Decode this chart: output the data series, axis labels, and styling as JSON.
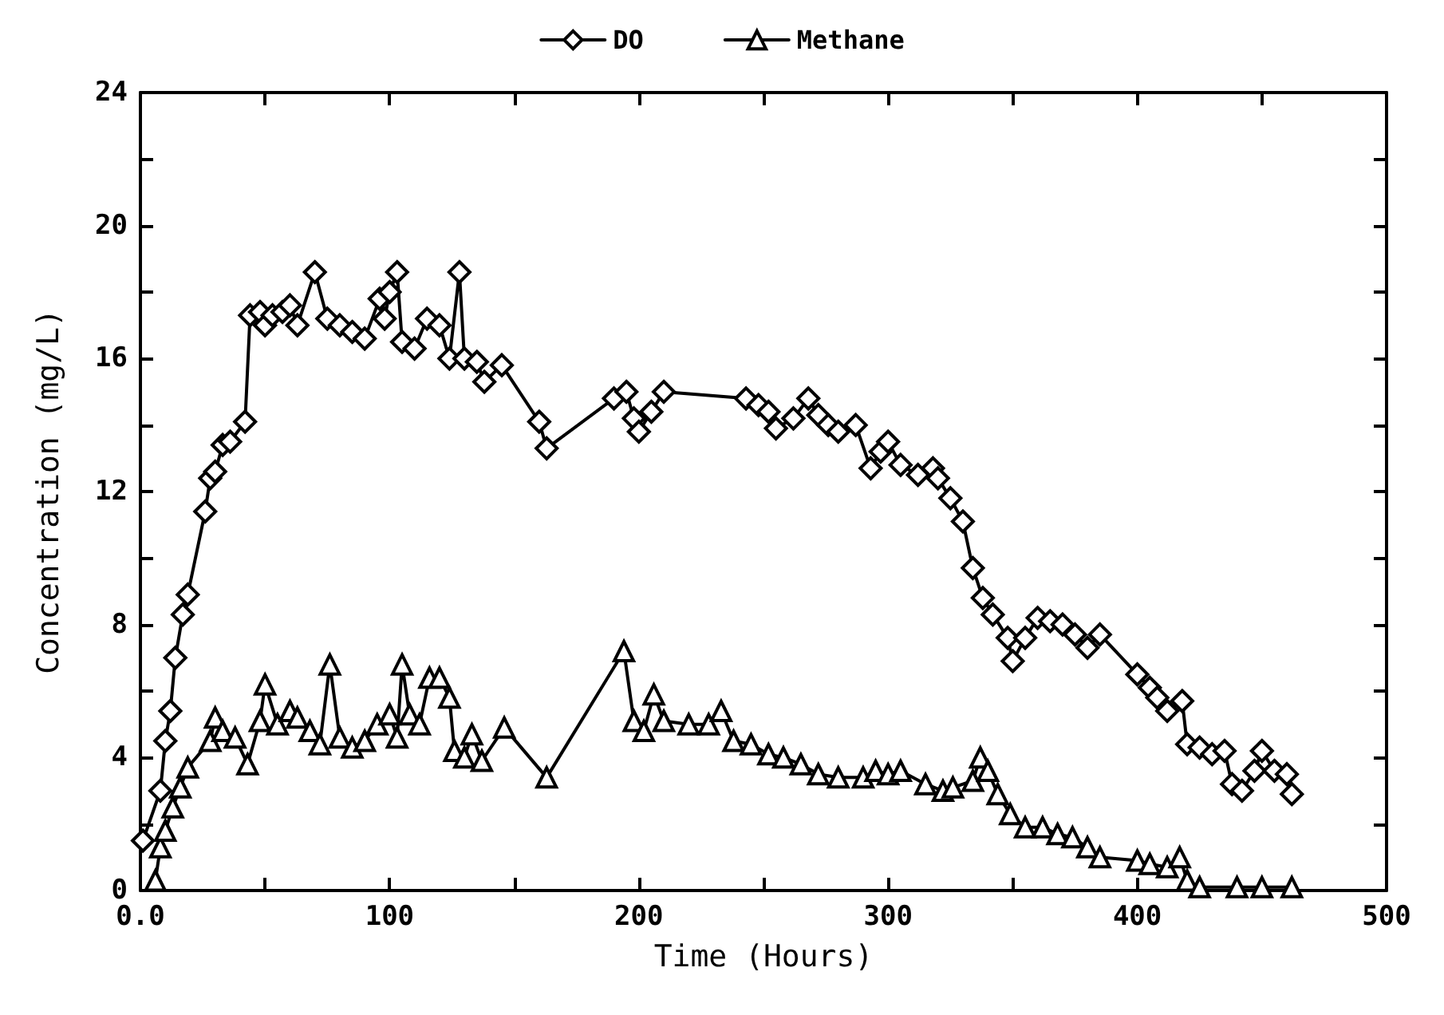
{
  "chart_data": {
    "type": "line",
    "xlabel": "Time (Hours)",
    "ylabel": "Concentration (mg/L)",
    "xlim": [
      0,
      500
    ],
    "ylim": [
      0,
      24
    ],
    "xticks": [
      {
        "value": 0,
        "label": "0.0"
      },
      {
        "value": 50,
        "label": null
      },
      100,
      {
        "value": 150,
        "label": null
      },
      200,
      {
        "value": 250,
        "label": null
      },
      300,
      {
        "value": 350,
        "label": null
      },
      400,
      {
        "value": 450,
        "label": null
      },
      500
    ],
    "yticks": [
      0,
      {
        "value": 2,
        "label": null
      },
      4,
      {
        "value": 6,
        "label": null
      },
      8,
      {
        "value": 10,
        "label": null
      },
      12,
      {
        "value": 14,
        "label": null
      },
      16,
      {
        "value": 18,
        "label": null
      },
      20,
      {
        "value": 22,
        "label": null
      },
      24
    ],
    "grid": false,
    "legend": "top",
    "line_style": "solid",
    "series": [
      {
        "name": "DO",
        "color": "#000000",
        "marker": "diamond",
        "x": [
          1,
          8,
          10,
          12,
          14,
          17,
          19,
          26,
          28,
          30,
          33,
          36,
          42,
          44,
          48,
          50,
          53,
          57,
          60,
          63,
          70,
          75,
          80,
          85,
          90,
          96,
          98,
          100,
          103,
          105,
          110,
          115,
          120,
          124,
          128,
          130,
          135,
          138,
          145,
          160,
          163,
          190,
          195,
          198,
          200,
          205,
          210,
          243,
          248,
          252,
          255,
          262,
          268,
          272,
          276,
          280,
          287,
          293,
          297,
          300,
          305,
          312,
          318,
          320,
          325,
          330,
          334,
          338,
          342,
          348,
          350,
          355,
          360,
          365,
          370,
          375,
          380,
          385,
          400,
          405,
          408,
          412,
          418,
          420,
          425,
          430,
          435,
          438,
          442,
          447,
          450,
          455,
          460,
          462
        ],
        "values": [
          1.5,
          3,
          4.5,
          5.4,
          7,
          8.3,
          8.9,
          11.4,
          12.4,
          12.6,
          13.4,
          13.5,
          14.1,
          17.3,
          17.4,
          17,
          17.3,
          17.4,
          17.6,
          17,
          18.6,
          17.2,
          17,
          16.8,
          16.6,
          17.8,
          17.2,
          18,
          18.6,
          16.5,
          16.3,
          17.2,
          17,
          16,
          18.6,
          16,
          15.9,
          15.3,
          15.8,
          14.1,
          13.3,
          14.8,
          15,
          14.2,
          13.8,
          14.4,
          15,
          14.8,
          14.6,
          14.4,
          13.9,
          14.2,
          14.8,
          14.3,
          14,
          13.8,
          14,
          12.7,
          13.2,
          13.5,
          12.8,
          12.5,
          12.7,
          12.4,
          11.8,
          11.1,
          9.7,
          8.8,
          8.3,
          7.6,
          6.9,
          7.6,
          8.2,
          8.1,
          8,
          7.7,
          7.3,
          7.7,
          6.5,
          6.1,
          5.8,
          5.4,
          5.7,
          4.4,
          4.3,
          4.1,
          4.2,
          3.2,
          3,
          3.6,
          4.2,
          3.6,
          3.5,
          2.9
        ]
      },
      {
        "name": "Methane",
        "color": "#000000",
        "marker": "triangle",
        "x": [
          6,
          8,
          10,
          13,
          16,
          19,
          28,
          30,
          33,
          38,
          43,
          48,
          50,
          55,
          60,
          63,
          68,
          72,
          76,
          80,
          85,
          90,
          95,
          100,
          103,
          105,
          108,
          112,
          116,
          120,
          124,
          126,
          130,
          133,
          137,
          146,
          163,
          194,
          198,
          202,
          206,
          210,
          220,
          228,
          233,
          238,
          245,
          252,
          258,
          265,
          272,
          280,
          290,
          295,
          300,
          305,
          315,
          322,
          326,
          334,
          337,
          340,
          344,
          349,
          355,
          362,
          368,
          374,
          380,
          385,
          400,
          405,
          412,
          417,
          420,
          425,
          440,
          450,
          462
        ],
        "values": [
          0.3,
          1.3,
          1.8,
          2.5,
          3.1,
          3.7,
          4.5,
          5.2,
          4.8,
          4.6,
          3.8,
          5.1,
          6.2,
          5,
          5.4,
          5.2,
          4.8,
          4.4,
          6.8,
          4.6,
          4.3,
          4.5,
          5,
          5.3,
          4.6,
          6.8,
          5.3,
          5,
          6.4,
          6.4,
          5.8,
          4.2,
          4,
          4.7,
          3.9,
          4.9,
          3.4,
          7.2,
          5.1,
          4.8,
          5.9,
          5.1,
          5,
          5,
          5.4,
          4.5,
          4.4,
          4.1,
          4,
          3.8,
          3.5,
          3.4,
          3.4,
          3.6,
          3.5,
          3.6,
          3.2,
          3,
          3.1,
          3.3,
          4,
          3.6,
          2.9,
          2.3,
          1.9,
          1.9,
          1.7,
          1.6,
          1.3,
          1,
          0.9,
          0.8,
          0.7,
          1,
          0.3,
          0.1,
          0.1,
          0.1,
          0.1
        ]
      }
    ]
  }
}
